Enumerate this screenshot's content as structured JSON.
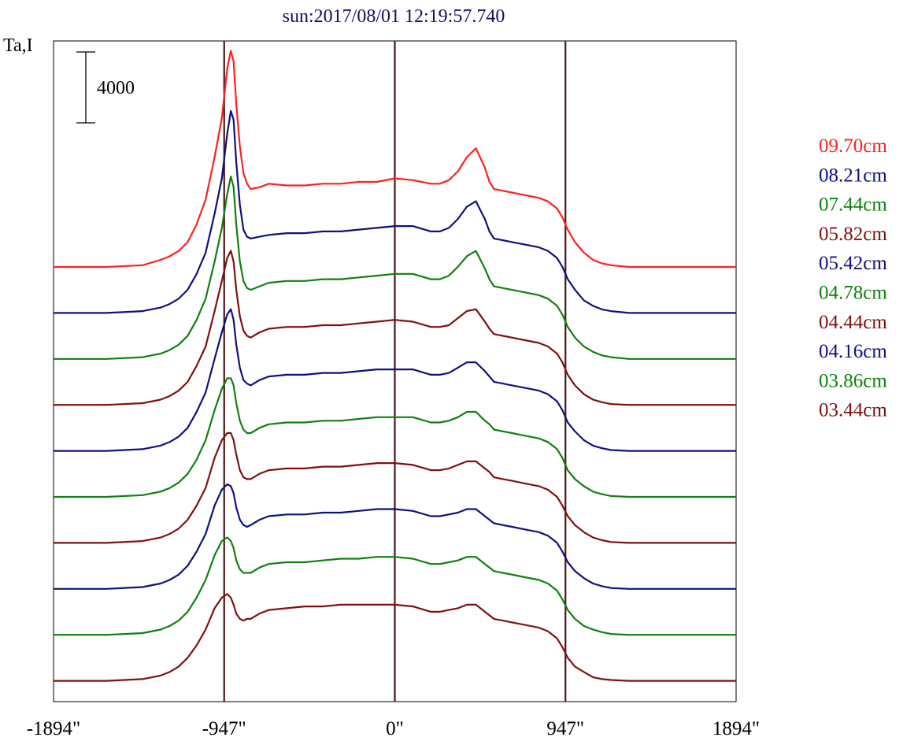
{
  "chart_data": {
    "type": "line",
    "title": "sun:2017/08/01 12:19:57.740",
    "ylabel": "Ta,I",
    "scale_bar_label": "4000",
    "scale_bar_value": 4000,
    "xlim": [
      -1894,
      1894
    ],
    "x_ticks": [
      {
        "value": -1894,
        "label": "-1894\""
      },
      {
        "value": -947,
        "label": "-947\""
      },
      {
        "value": 0,
        "label": "0\""
      },
      {
        "value": 947,
        "label": "947\""
      },
      {
        "value": 1894,
        "label": "1894\""
      }
    ],
    "vertical_lines": [
      -947,
      0,
      947
    ],
    "grid": false,
    "legend_position": "right",
    "profile_x": [
      -1894,
      -1600,
      -1400,
      -1300,
      -1250,
      -1200,
      -1150,
      -1100,
      -1050,
      -1000,
      -960,
      -930,
      -910,
      -895,
      -880,
      -860,
      -840,
      -820,
      -800,
      -750,
      -700,
      -600,
      -500,
      -400,
      -300,
      -200,
      -100,
      0,
      100,
      200,
      250,
      300,
      350,
      400,
      450,
      500,
      525,
      550,
      600,
      650,
      700,
      800,
      850,
      900,
      930,
      960,
      1000,
      1050,
      1100,
      1150,
      1200,
      1300,
      1400,
      1600,
      1894
    ],
    "series": [
      {
        "name": "09.70cm",
        "color": "#ff2020",
        "values": [
          0,
          0,
          100,
          400,
          600,
          900,
          1400,
          2400,
          3800,
          6200,
          8400,
          11200,
          12200,
          11600,
          9200,
          6800,
          5300,
          4700,
          4400,
          4500,
          4700,
          4600,
          4600,
          4700,
          4700,
          4800,
          4800,
          5000,
          4900,
          4700,
          4700,
          4900,
          5400,
          6200,
          6700,
          5600,
          4800,
          4400,
          4300,
          4200,
          4100,
          3900,
          3700,
          3300,
          2800,
          2100,
          1400,
          800,
          400,
          200,
          100,
          0,
          0,
          0,
          0
        ]
      },
      {
        "name": "08.21cm",
        "color": "#101080",
        "values": [
          0,
          0,
          100,
          300,
          500,
          800,
          1300,
          2200,
          3400,
          5600,
          7600,
          10100,
          11400,
          10900,
          8500,
          6100,
          4700,
          4300,
          4200,
          4300,
          4400,
          4500,
          4500,
          4600,
          4600,
          4700,
          4800,
          4900,
          4900,
          4600,
          4600,
          4800,
          5300,
          6000,
          6300,
          5300,
          4600,
          4200,
          4100,
          4000,
          3900,
          3700,
          3500,
          3100,
          2600,
          1900,
          1300,
          700,
          400,
          200,
          100,
          0,
          0,
          0,
          0
        ]
      },
      {
        "name": "07.44cm",
        "color": "#108010",
        "values": [
          0,
          0,
          100,
          300,
          500,
          800,
          1300,
          2200,
          3400,
          5500,
          7400,
          9300,
          10300,
          9700,
          7600,
          5500,
          4400,
          4000,
          3900,
          4100,
          4300,
          4400,
          4400,
          4500,
          4500,
          4600,
          4700,
          4800,
          4800,
          4500,
          4500,
          4700,
          5200,
          5800,
          6100,
          5100,
          4500,
          4100,
          4000,
          3900,
          3800,
          3600,
          3400,
          3000,
          2500,
          1800,
          1200,
          700,
          400,
          200,
          100,
          0,
          0,
          0,
          0
        ]
      },
      {
        "name": "05.82cm",
        "color": "#801010",
        "values": [
          0,
          0,
          100,
          300,
          500,
          800,
          1300,
          2200,
          3300,
          5300,
          7000,
          8300,
          8700,
          8100,
          6500,
          5000,
          4200,
          3900,
          3800,
          4100,
          4300,
          4400,
          4400,
          4500,
          4500,
          4600,
          4700,
          4800,
          4700,
          4400,
          4400,
          4500,
          4900,
          5300,
          5400,
          4700,
          4300,
          4000,
          3900,
          3800,
          3700,
          3500,
          3300,
          2900,
          2400,
          1700,
          1100,
          600,
          300,
          150,
          50,
          0,
          0,
          0,
          0
        ]
      },
      {
        "name": "05.42cm",
        "color": "#101080",
        "values": [
          0,
          0,
          100,
          300,
          500,
          800,
          1300,
          2200,
          3300,
          5200,
          6700,
          7700,
          8000,
          7400,
          6000,
          4700,
          4000,
          3800,
          3700,
          4000,
          4200,
          4300,
          4300,
          4400,
          4400,
          4500,
          4600,
          4600,
          4600,
          4300,
          4300,
          4400,
          4700,
          5000,
          5000,
          4500,
          4200,
          3900,
          3800,
          3700,
          3600,
          3400,
          3200,
          2800,
          2300,
          1600,
          1100,
          600,
          300,
          150,
          50,
          0,
          0,
          0,
          0
        ]
      },
      {
        "name": "04.78cm",
        "color": "#108010",
        "values": [
          0,
          0,
          100,
          300,
          500,
          800,
          1300,
          2100,
          3200,
          4900,
          6100,
          6700,
          6700,
          6300,
          5300,
          4300,
          3800,
          3600,
          3600,
          3900,
          4100,
          4200,
          4200,
          4300,
          4300,
          4400,
          4500,
          4500,
          4500,
          4200,
          4200,
          4300,
          4500,
          4800,
          4800,
          4300,
          4100,
          3800,
          3700,
          3600,
          3500,
          3300,
          3100,
          2700,
          2200,
          1500,
          1000,
          600,
          300,
          150,
          50,
          0,
          0,
          0,
          0
        ]
      },
      {
        "name": "04.44cm",
        "color": "#801010",
        "values": [
          0,
          0,
          100,
          300,
          500,
          800,
          1300,
          2100,
          3100,
          4800,
          5800,
          6200,
          6200,
          5800,
          5000,
          4100,
          3700,
          3600,
          3600,
          3900,
          4100,
          4200,
          4200,
          4300,
          4300,
          4400,
          4500,
          4500,
          4400,
          4100,
          4100,
          4200,
          4400,
          4600,
          4600,
          4200,
          4000,
          3700,
          3600,
          3500,
          3400,
          3200,
          3000,
          2600,
          2100,
          1500,
          1000,
          600,
          300,
          150,
          50,
          0,
          0,
          0,
          0
        ]
      },
      {
        "name": "04.16cm",
        "color": "#101080",
        "values": [
          0,
          0,
          100,
          300,
          500,
          800,
          1300,
          2100,
          3100,
          4700,
          5600,
          5900,
          5800,
          5400,
          4600,
          3900,
          3600,
          3500,
          3600,
          3900,
          4100,
          4200,
          4200,
          4300,
          4300,
          4400,
          4500,
          4500,
          4400,
          4100,
          4100,
          4200,
          4300,
          4500,
          4500,
          4100,
          3900,
          3700,
          3600,
          3500,
          3400,
          3200,
          3000,
          2600,
          2100,
          1500,
          1000,
          600,
          300,
          150,
          50,
          0,
          0,
          0,
          0
        ]
      },
      {
        "name": "03.86cm",
        "color": "#108010",
        "values": [
          0,
          0,
          100,
          300,
          500,
          800,
          1300,
          2100,
          3100,
          4500,
          5300,
          5500,
          5300,
          4900,
          4200,
          3700,
          3500,
          3500,
          3500,
          3800,
          4000,
          4100,
          4100,
          4200,
          4300,
          4300,
          4400,
          4400,
          4300,
          4000,
          4000,
          4100,
          4200,
          4400,
          4400,
          4000,
          3800,
          3600,
          3500,
          3400,
          3300,
          3100,
          2900,
          2500,
          2000,
          1400,
          900,
          500,
          300,
          150,
          50,
          0,
          0,
          0,
          0
        ]
      },
      {
        "name": "03.44cm",
        "color": "#801010",
        "values": [
          0,
          0,
          100,
          300,
          500,
          800,
          1300,
          2000,
          2900,
          4100,
          4700,
          4900,
          4700,
          4300,
          3800,
          3500,
          3400,
          3500,
          3500,
          3800,
          4000,
          4100,
          4200,
          4200,
          4300,
          4300,
          4300,
          4300,
          4200,
          3900,
          3900,
          4000,
          4100,
          4300,
          4300,
          3900,
          3700,
          3500,
          3400,
          3300,
          3200,
          3000,
          2800,
          2400,
          1900,
          1300,
          800,
          500,
          200,
          100,
          50,
          0,
          0,
          0,
          0
        ]
      }
    ]
  }
}
